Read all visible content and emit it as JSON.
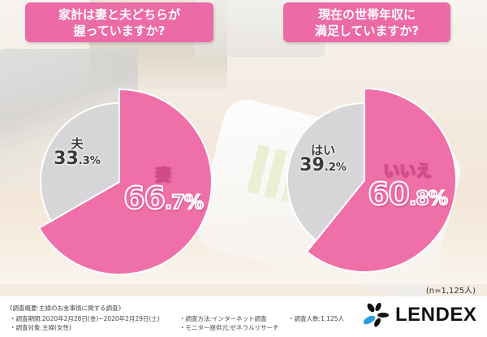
{
  "questions": [
    {
      "line1": "家計は妻と夫どちらが",
      "line2": "握っていますか?"
    },
    {
      "line1": "現在の世帯年収に",
      "line2": "満足していますか?"
    }
  ],
  "colors": {
    "pink": "#ef6fa8",
    "gray": "#d6d6d8",
    "title_bg": "#ec6aa6",
    "logo_blue": "#2a9ee0"
  },
  "chart_data": [
    {
      "type": "pie",
      "title": "家計は妻と夫どちらが握っていますか?",
      "categories": [
        "妻",
        "夫"
      ],
      "values": [
        66.7,
        33.3
      ],
      "unit": "%",
      "colors": [
        "#ef6fa8",
        "#d6d6d8"
      ],
      "exploded": [
        "妻"
      ]
    },
    {
      "type": "pie",
      "title": "現在の世帯年収に満足していますか?",
      "categories": [
        "いいえ",
        "はい"
      ],
      "values": [
        60.8,
        39.2
      ],
      "unit": "%",
      "colors": [
        "#ef6fa8",
        "#d6d6d8"
      ],
      "exploded": [
        "いいえ"
      ]
    }
  ],
  "labels": {
    "chart1": {
      "pink_cat": "妻",
      "pink_int": "66",
      "pink_dec": ".7%",
      "gray_cat": "夫",
      "gray_int": "33",
      "gray_dec": ".3%"
    },
    "chart2": {
      "pink_cat": "いいえ",
      "pink_int": "60",
      "pink_dec": ".8%",
      "gray_cat": "はい",
      "gray_int": "39",
      "gray_dec": ".2%"
    }
  },
  "sample_size": "(n=1,125人)",
  "footer": {
    "heading": "《調査概要:主婦のお金事情に関する調査》",
    "period": "・調査期間:2020年2月28日(金)~2020年2月29日(土)",
    "target": "・調査対象:主婦(女性)",
    "method": "・調査方法:インターネット調査",
    "provider": "・モニター提供元:ゼネラルリサーチ",
    "count": "・調査人数:1,125人"
  },
  "logo": {
    "text": "LENDEX"
  }
}
